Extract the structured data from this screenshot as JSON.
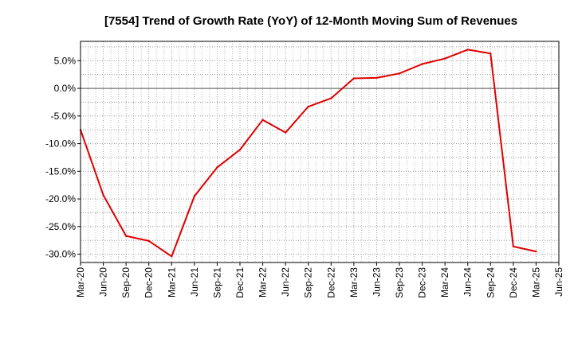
{
  "chart_data": {
    "type": "line",
    "title": "[7554]  Trend of Growth Rate (YoY) of 12-Month Moving Sum of Revenues",
    "xlabel": "",
    "ylabel": "",
    "x_ticks": [
      "Mar-20",
      "Jun-20",
      "Sep-20",
      "Dec-20",
      "Mar-21",
      "Jun-21",
      "Sep-21",
      "Dec-21",
      "Mar-22",
      "Jun-22",
      "Sep-22",
      "Dec-22",
      "Mar-23",
      "Jun-23",
      "Sep-23",
      "Dec-23",
      "Mar-24",
      "Jun-24",
      "Sep-24",
      "Dec-24",
      "Mar-25",
      "Jun-25"
    ],
    "y_ticks": [
      "5.0%",
      "0.0%",
      "-5.0%",
      "-10.0%",
      "-15.0%",
      "-20.0%",
      "-25.0%",
      "-30.0%"
    ],
    "y_tick_values": [
      5,
      0,
      -5,
      -10,
      -15,
      -20,
      -25,
      -30
    ],
    "ylim": [
      -31.5,
      8.5
    ],
    "grid": true,
    "color": "#e00000",
    "series": [
      {
        "x": [
          "Mar-20",
          "Jun-20",
          "Sep-20",
          "Dec-20",
          "Mar-21",
          "Jun-21",
          "Sep-21",
          "Dec-21",
          "Mar-22",
          "Jun-22",
          "Sep-22",
          "Dec-22",
          "Mar-23",
          "Jun-23",
          "Sep-23",
          "Dec-23",
          "Mar-24",
          "Jun-24",
          "Sep-24",
          "Dec-24",
          "Mar-25"
        ],
        "values": [
          -7.5,
          -19.3,
          -26.7,
          -27.6,
          -30.4,
          -19.5,
          -14.3,
          -11.1,
          -5.7,
          -8.0,
          -3.3,
          -1.8,
          1.8,
          1.9,
          2.7,
          4.4,
          5.4,
          7.0,
          6.3,
          -28.6,
          -29.5
        ]
      }
    ]
  }
}
